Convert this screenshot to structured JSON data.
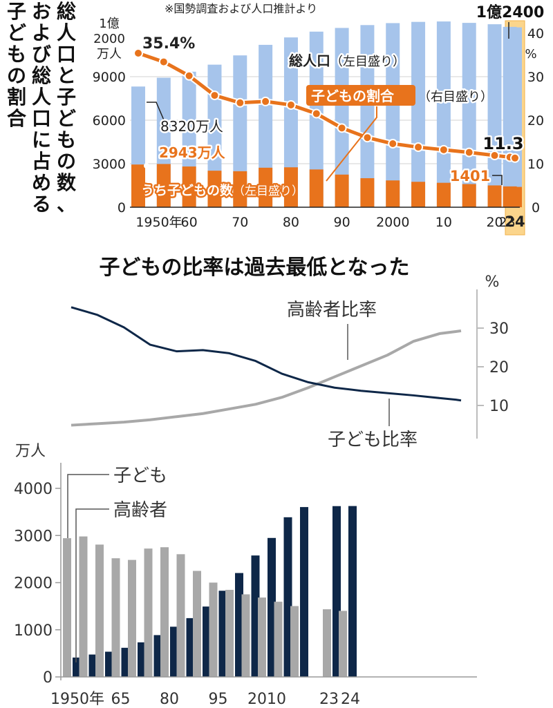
{
  "chart_data": [
    {
      "type": "bar",
      "title": "総人口と子どもの数、および総人口に占める子どもの割合",
      "note": "※国勢調査および人口推計より",
      "left_axis": {
        "unit_lines": [
          "1億",
          "2000",
          "万人"
        ],
        "ticks": [
          {
            "value": 0,
            "label": "0"
          },
          {
            "value": 3000,
            "label": "3000"
          },
          {
            "value": 6000,
            "label": "6000"
          },
          {
            "value": 9000,
            "label": "9000"
          }
        ],
        "ylim": [
          0,
          12000
        ]
      },
      "right_axis": {
        "unit": "%",
        "ticks": [
          {
            "value": 0,
            "label": "0"
          },
          {
            "value": 10,
            "label": "10"
          },
          {
            "value": 20,
            "label": "20"
          },
          {
            "value": 30,
            "label": "30"
          },
          {
            "value": 40,
            "label": "40"
          }
        ],
        "ylim": [
          0,
          40
        ]
      },
      "x_ticks": [
        {
          "year": 1950,
          "label": "1950年"
        },
        {
          "year": 1960,
          "label": "60"
        },
        {
          "year": 1970,
          "label": "70"
        },
        {
          "year": 1980,
          "label": "80"
        },
        {
          "year": 1990,
          "label": "90"
        },
        {
          "year": 2000,
          "label": "2000"
        },
        {
          "year": 2010,
          "label": "10"
        },
        {
          "year": 2020,
          "label": "20"
        },
        {
          "year": 2023,
          "label": "23"
        },
        {
          "year": 2024,
          "label": "24"
        }
      ],
      "highlight_year": 2024,
      "years": [
        1950,
        1955,
        1960,
        1965,
        1970,
        1975,
        1980,
        1985,
        1990,
        1995,
        2000,
        2005,
        2010,
        2015,
        2020,
        2023,
        2024
      ],
      "series": [
        {
          "name": "総人口",
          "axis": "left",
          "color": "#a6c4eb",
          "values": [
            8320,
            8928,
            9342,
            9828,
            10467,
            11194,
            11706,
            12105,
            12361,
            12557,
            12693,
            12777,
            12806,
            12709,
            12615,
            12435,
            12400
          ]
        },
        {
          "name": "うち子どもの数",
          "axis": "left",
          "color": "#e8731c",
          "values": [
            2943,
            2980,
            2807,
            2517,
            2482,
            2723,
            2751,
            2603,
            2249,
            2001,
            1847,
            1752,
            1684,
            1595,
            1503,
            1435,
            1401
          ]
        },
        {
          "name": "子どもの割合",
          "axis": "right",
          "color": "#e8731c",
          "values": [
            35.4,
            33.4,
            30.2,
            25.7,
            24.0,
            24.3,
            23.5,
            21.5,
            18.2,
            16.0,
            14.6,
            13.8,
            13.2,
            12.6,
            11.9,
            11.5,
            11.3
          ]
        }
      ],
      "legend_labels": {
        "total": "総人口",
        "total_suffix": "（左目盛り）",
        "ratio": "子どもの割合",
        "ratio_suffix": "（右目盛り）",
        "children": "うち子どもの数",
        "children_suffix": "（左目盛り）"
      },
      "annotations": {
        "first_ratio": "35.4%",
        "first_total": "8320万人",
        "first_children": "2943万人",
        "last_total": "1億2400",
        "last_ratio": "11.3",
        "last_children": "1401"
      }
    },
    {
      "type": "line",
      "title": "子どもの比率は過去最低となった",
      "y_unit": "%",
      "ticks": [
        {
          "value": 10,
          "label": "10"
        },
        {
          "value": 20,
          "label": "20"
        },
        {
          "value": 30,
          "label": "30"
        }
      ],
      "ylim": [
        5,
        35
      ],
      "years": [
        1950,
        1955,
        1960,
        1965,
        1970,
        1975,
        1980,
        1985,
        1990,
        1995,
        2000,
        2005,
        2010,
        2015,
        2020,
        2023,
        2024
      ],
      "series": [
        {
          "name": "高齢者比率",
          "color": "#a8a8a8",
          "values": [
            4.9,
            5.3,
            5.7,
            6.3,
            7.1,
            7.9,
            9.1,
            10.3,
            12.1,
            14.6,
            17.4,
            20.2,
            23.0,
            26.6,
            28.6,
            29.1,
            29.3
          ]
        },
        {
          "name": "子ども比率",
          "color": "#0e2748",
          "values": [
            35.4,
            33.4,
            30.2,
            25.7,
            24.0,
            24.3,
            23.5,
            21.5,
            18.2,
            16.0,
            14.6,
            13.8,
            13.2,
            12.6,
            11.9,
            11.5,
            11.3
          ]
        }
      ]
    },
    {
      "type": "bar",
      "y_unit": "万人",
      "ticks": [
        {
          "value": 0,
          "label": "0"
        },
        {
          "value": 1000,
          "label": "1000"
        },
        {
          "value": 2000,
          "label": "2000"
        },
        {
          "value": 3000,
          "label": "3000"
        },
        {
          "value": 4000,
          "label": "4000"
        }
      ],
      "ylim": [
        0,
        4400
      ],
      "categories": [
        1950,
        1955,
        1960,
        1965,
        1970,
        1975,
        1980,
        1985,
        1990,
        1995,
        2000,
        2005,
        2010,
        2015,
        2020,
        2023,
        2024
      ],
      "x_ticks": [
        {
          "year": 1950,
          "label": "1950年"
        },
        {
          "year": 1965,
          "label": "65"
        },
        {
          "year": 1980,
          "label": "80"
        },
        {
          "year": 1995,
          "label": "95"
        },
        {
          "year": 2010,
          "label": "2010"
        },
        {
          "year": 2023,
          "label": "23"
        },
        {
          "year": 2024,
          "label": "24"
        }
      ],
      "series": [
        {
          "name": "子ども",
          "color": "#a8a8a8",
          "values": [
            2943,
            2980,
            2807,
            2517,
            2482,
            2723,
            2751,
            2603,
            2249,
            2001,
            1847,
            1752,
            1684,
            1595,
            1503,
            1435,
            1401
          ]
        },
        {
          "name": "高齢者",
          "color": "#0e2748",
          "values": [
            411,
            475,
            535,
            618,
            733,
            887,
            1065,
            1247,
            1493,
            1828,
            2204,
            2576,
            2948,
            3387,
            3603,
            3623,
            3625
          ]
        }
      ]
    }
  ]
}
